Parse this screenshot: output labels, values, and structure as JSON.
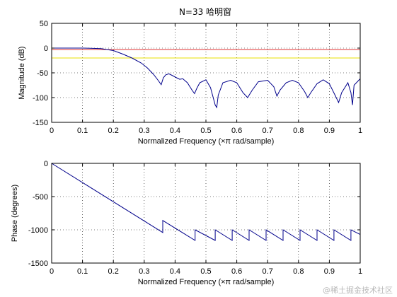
{
  "title": "N=33 哈明窗",
  "watermark": "@稀土掘金技术社区",
  "colors": {
    "response": "#00008b",
    "ref_red": "#e03030",
    "ref_yellow": "#e8e000",
    "axes": "#000000",
    "grid": "#000000"
  },
  "chart_data": [
    {
      "type": "line",
      "xlabel": "Normalized Frequency  (×π rad/sample)",
      "ylabel": "Magnitude (dB)",
      "xlim": [
        0,
        1
      ],
      "ylim": [
        -150,
        50
      ],
      "xticks": [
        0,
        0.1,
        0.2,
        0.3,
        0.4,
        0.5,
        0.6,
        0.7,
        0.8,
        0.9,
        1
      ],
      "yticks": [
        -150,
        -100,
        -50,
        0,
        50
      ],
      "grid": true,
      "reference_lines": [
        {
          "y": -3,
          "color": "red"
        },
        {
          "y": -20,
          "color": "yellow"
        }
      ],
      "series": [
        {
          "x": [
            0,
            0.1,
            0.16,
            0.2,
            0.23,
            0.26,
            0.29,
            0.31,
            0.33,
            0.345,
            0.355,
            0.362,
            0.37,
            0.38,
            0.39,
            0.405,
            0.415,
            0.425,
            0.44,
            0.455,
            0.463,
            0.47,
            0.48,
            0.5,
            0.515,
            0.53,
            0.535,
            0.54,
            0.555,
            0.58,
            0.6,
            0.62,
            0.635,
            0.65,
            0.67,
            0.7,
            0.72,
            0.73,
            0.74,
            0.76,
            0.78,
            0.8,
            0.82,
            0.83,
            0.84,
            0.86,
            0.88,
            0.9,
            0.92,
            0.93,
            0.94,
            0.96,
            0.97,
            0.975,
            0.98,
            1.0
          ],
          "y": [
            0,
            0,
            -1,
            -5,
            -12,
            -20,
            -30,
            -40,
            -53,
            -65,
            -74,
            -60,
            -54,
            -52,
            -55,
            -60,
            -63,
            -62,
            -70,
            -85,
            -92,
            -82,
            -70,
            -64,
            -80,
            -115,
            -120,
            -95,
            -70,
            -65,
            -70,
            -90,
            -100,
            -85,
            -68,
            -65,
            -78,
            -97,
            -85,
            -70,
            -65,
            -70,
            -88,
            -100,
            -90,
            -72,
            -64,
            -72,
            -97,
            -110,
            -90,
            -70,
            -90,
            -115,
            -75,
            -62
          ]
        }
      ]
    },
    {
      "type": "line",
      "xlabel": "Normalized Frequency  (×π rad/sample)",
      "ylabel": "Phase (degrees)",
      "xlim": [
        0,
        1
      ],
      "ylim": [
        -1500,
        0
      ],
      "xticks": [
        0,
        0.1,
        0.2,
        0.3,
        0.4,
        0.5,
        0.6,
        0.7,
        0.8,
        0.9,
        1
      ],
      "yticks": [
        -1500,
        -1000,
        -500,
        0
      ],
      "grid": true,
      "series": [
        {
          "x": [
            0,
            0.36,
            0.36,
            0.465,
            0.465,
            0.53,
            0.53,
            0.585,
            0.585,
            0.64,
            0.64,
            0.695,
            0.695,
            0.75,
            0.75,
            0.805,
            0.805,
            0.86,
            0.86,
            0.915,
            0.915,
            0.97,
            0.97,
            1.0
          ],
          "y": [
            0,
            -1040,
            -860,
            -1160,
            -1000,
            -1160,
            -1000,
            -1160,
            -1000,
            -1160,
            -1000,
            -1160,
            -1000,
            -1160,
            -1000,
            -1160,
            -1000,
            -1160,
            -1000,
            -1160,
            -1000,
            -1160,
            -1000,
            -1070
          ]
        }
      ]
    }
  ]
}
